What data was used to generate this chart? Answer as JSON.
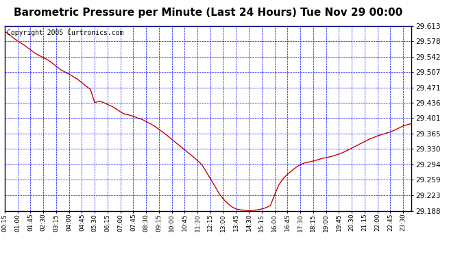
{
  "title": "Barometric Pressure per Minute (Last 24 Hours) Tue Nov 29 00:00",
  "copyright": "Copyright 2005 Curtronics.com",
  "y_ticks": [
    29.188,
    29.223,
    29.259,
    29.294,
    29.33,
    29.365,
    29.401,
    29.436,
    29.471,
    29.507,
    29.542,
    29.578,
    29.613
  ],
  "ylim": [
    29.188,
    29.613
  ],
  "x_tick_labels": [
    "00:15",
    "01:00",
    "01:45",
    "02:30",
    "03:15",
    "04:00",
    "04:45",
    "05:30",
    "06:15",
    "07:00",
    "07:45",
    "08:30",
    "09:15",
    "10:00",
    "10:45",
    "11:30",
    "12:15",
    "13:00",
    "13:45",
    "14:30",
    "15:15",
    "16:00",
    "16:45",
    "17:30",
    "18:15",
    "19:00",
    "19:45",
    "20:30",
    "21:15",
    "22:00",
    "22:45",
    "23:30"
  ],
  "background_color": "#ffffff",
  "grid_color": "#0000ff",
  "line_color": "#cc0000",
  "title_fontsize": 11,
  "copyright_fontsize": 7,
  "tick_label_fontsize": 6.5,
  "y_tick_label_fontsize": 7.5,
  "line_width": 1.0,
  "waypoints": [
    [
      15,
      29.6
    ],
    [
      30,
      29.593
    ],
    [
      45,
      29.585
    ],
    [
      60,
      29.578
    ],
    [
      75,
      29.572
    ],
    [
      90,
      29.565
    ],
    [
      105,
      29.558
    ],
    [
      120,
      29.55
    ],
    [
      135,
      29.545
    ],
    [
      150,
      29.54
    ],
    [
      165,
      29.535
    ],
    [
      180,
      29.528
    ],
    [
      195,
      29.52
    ],
    [
      210,
      29.512
    ],
    [
      225,
      29.507
    ],
    [
      240,
      29.502
    ],
    [
      255,
      29.496
    ],
    [
      270,
      29.49
    ],
    [
      285,
      29.482
    ],
    [
      300,
      29.474
    ],
    [
      315,
      29.467
    ],
    [
      330,
      29.436
    ],
    [
      345,
      29.44
    ],
    [
      360,
      29.437
    ],
    [
      375,
      29.432
    ],
    [
      390,
      29.428
    ],
    [
      405,
      29.422
    ],
    [
      420,
      29.415
    ],
    [
      435,
      29.41
    ],
    [
      450,
      29.408
    ],
    [
      465,
      29.405
    ],
    [
      480,
      29.401
    ],
    [
      495,
      29.398
    ],
    [
      510,
      29.393
    ],
    [
      525,
      29.388
    ],
    [
      540,
      29.382
    ],
    [
      555,
      29.375
    ],
    [
      570,
      29.368
    ],
    [
      585,
      29.36
    ],
    [
      600,
      29.352
    ],
    [
      615,
      29.344
    ],
    [
      630,
      29.336
    ],
    [
      645,
      29.328
    ],
    [
      660,
      29.32
    ],
    [
      675,
      29.312
    ],
    [
      690,
      29.303
    ],
    [
      705,
      29.294
    ],
    [
      720,
      29.278
    ],
    [
      735,
      29.262
    ],
    [
      750,
      29.245
    ],
    [
      765,
      29.228
    ],
    [
      780,
      29.215
    ],
    [
      795,
      29.205
    ],
    [
      810,
      29.197
    ],
    [
      825,
      29.192
    ],
    [
      840,
      29.19
    ],
    [
      855,
      29.189
    ],
    [
      870,
      29.188
    ],
    [
      885,
      29.189
    ],
    [
      900,
      29.19
    ],
    [
      915,
      29.192
    ],
    [
      930,
      29.195
    ],
    [
      945,
      29.2
    ],
    [
      960,
      29.225
    ],
    [
      975,
      29.248
    ],
    [
      990,
      29.262
    ],
    [
      1005,
      29.272
    ],
    [
      1020,
      29.28
    ],
    [
      1035,
      29.288
    ],
    [
      1050,
      29.294
    ],
    [
      1065,
      29.298
    ],
    [
      1080,
      29.3
    ],
    [
      1095,
      29.302
    ],
    [
      1110,
      29.305
    ],
    [
      1125,
      29.308
    ],
    [
      1140,
      29.31
    ],
    [
      1155,
      29.312
    ],
    [
      1170,
      29.315
    ],
    [
      1185,
      29.318
    ],
    [
      1200,
      29.322
    ],
    [
      1215,
      29.327
    ],
    [
      1230,
      29.332
    ],
    [
      1245,
      29.337
    ],
    [
      1260,
      29.342
    ],
    [
      1275,
      29.347
    ],
    [
      1290,
      29.352
    ],
    [
      1305,
      29.356
    ],
    [
      1320,
      29.36
    ],
    [
      1335,
      29.363
    ],
    [
      1350,
      29.366
    ],
    [
      1365,
      29.369
    ],
    [
      1380,
      29.373
    ],
    [
      1395,
      29.378
    ],
    [
      1410,
      29.383
    ],
    [
      1425,
      29.386
    ],
    [
      1439,
      29.388
    ]
  ]
}
